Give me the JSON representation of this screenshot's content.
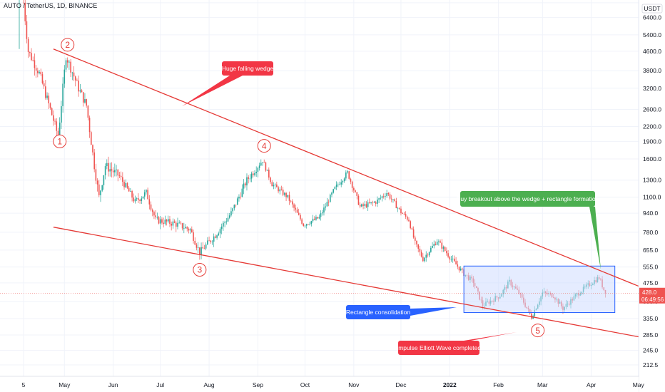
{
  "header": {
    "title": "AUTO / TetherUS, 1D, BINANCE"
  },
  "colors": {
    "up": "#26a69a",
    "down": "#ef5350",
    "trendline": "#e53935",
    "rectangle_stroke": "#2962ff",
    "rectangle_fill": "#cfdcff",
    "ann_red": "#f23645",
    "ann_green": "#4caf50",
    "ann_blue": "#2962ff",
    "price_tag": "#ef5350"
  },
  "chart_data": {
    "type": "candlestick",
    "title": "AUTO / TetherUS, 1D, BINANCE",
    "yscale": "log",
    "ylim": [
      190,
      7600
    ],
    "x_ticks": [
      "5",
      "May",
      "Jun",
      "Jul",
      "Aug",
      "Sep",
      "Oct",
      "Nov",
      "Dec",
      "2022",
      "Feb",
      "Mar",
      "Apr",
      "May"
    ],
    "y_ticks": [
      "7400.0",
      "6400.0",
      "5400.0",
      "4600.0",
      "3800.0",
      "3200.0",
      "2600.0",
      "2200.0",
      "1900.0",
      "1600.0",
      "1300.0",
      "1100.0",
      "940.0",
      "780.0",
      "655.0",
      "555.0",
      "475.0",
      "395.0",
      "335.0",
      "285.0",
      "245.0",
      "212.5"
    ],
    "currency_label": "USDT",
    "last_price": "428.0",
    "countdown": "06:49:56",
    "price_path": [
      [
        "2021-04-05",
        7400
      ],
      [
        "2021-04-08",
        4600
      ],
      [
        "2021-04-15",
        3700
      ],
      [
        "2021-04-22",
        2600
      ],
      [
        "2021-04-27",
        2000
      ],
      [
        "2021-05-02",
        4400
      ],
      [
        "2021-05-10",
        3200
      ],
      [
        "2021-05-15",
        2700
      ],
      [
        "2021-05-20",
        1500
      ],
      [
        "2021-05-23",
        1100
      ],
      [
        "2021-05-27",
        1500
      ],
      [
        "2021-06-05",
        1350
      ],
      [
        "2021-06-15",
        1050
      ],
      [
        "2021-06-22",
        1150
      ],
      [
        "2021-06-28",
        880
      ],
      [
        "2021-07-10",
        850
      ],
      [
        "2021-07-20",
        800
      ],
      [
        "2021-07-26",
        640
      ],
      [
        "2021-08-05",
        760
      ],
      [
        "2021-08-15",
        940
      ],
      [
        "2021-08-25",
        1300
      ],
      [
        "2021-09-04",
        1580
      ],
      [
        "2021-09-10",
        1250
      ],
      [
        "2021-09-20",
        1100
      ],
      [
        "2021-09-30",
        840
      ],
      [
        "2021-10-10",
        900
      ],
      [
        "2021-10-20",
        1200
      ],
      [
        "2021-10-28",
        1400
      ],
      [
        "2021-11-05",
        1000
      ],
      [
        "2021-11-15",
        1050
      ],
      [
        "2021-11-22",
        1150
      ],
      [
        "2021-12-01",
        950
      ],
      [
        "2021-12-06",
        880
      ],
      [
        "2021-12-10",
        700
      ],
      [
        "2021-12-15",
        600
      ],
      [
        "2021-12-24",
        720
      ],
      [
        "2022-01-02",
        600
      ],
      [
        "2022-01-10",
        520
      ],
      [
        "2022-01-16",
        480
      ],
      [
        "2022-01-22",
        380
      ],
      [
        "2022-02-02",
        420
      ],
      [
        "2022-02-08",
        480
      ],
      [
        "2022-02-14",
        430
      ],
      [
        "2022-02-22",
        340
      ],
      [
        "2022-03-01",
        430
      ],
      [
        "2022-03-08",
        420
      ],
      [
        "2022-03-14",
        370
      ],
      [
        "2022-03-24",
        430
      ],
      [
        "2022-04-02",
        480
      ],
      [
        "2022-04-06",
        500
      ],
      [
        "2022-04-10",
        428
      ]
    ],
    "wedge_upper": [
      [
        "2021-04-24",
        4700
      ],
      [
        "2022-05-01",
        460
      ]
    ],
    "wedge_lower": [
      [
        "2021-04-24",
        820
      ],
      [
        "2022-05-01",
        280
      ]
    ],
    "rectangle": {
      "x": [
        "2022-01-10",
        "2022-04-16"
      ],
      "y": [
        355,
        560
      ]
    },
    "wave_labels": [
      {
        "label": "1",
        "date": "2021-04-28",
        "price": 1900
      },
      {
        "label": "2",
        "date": "2021-05-03",
        "price": 4900
      },
      {
        "label": "3",
        "date": "2021-07-26",
        "price": 540
      },
      {
        "label": "4",
        "date": "2021-09-05",
        "price": 1820
      },
      {
        "label": "5",
        "date": "2022-02-26",
        "price": 298
      }
    ],
    "annotations": [
      {
        "text": "Huge falling wedge",
        "kind": "red"
      },
      {
        "text": "Buy breakout above the wedge + rectangle formation",
        "kind": "green"
      },
      {
        "text": "Rectangle consolidation",
        "kind": "blue"
      },
      {
        "text": "Impulse Elliott Wave completed",
        "kind": "red"
      }
    ]
  }
}
